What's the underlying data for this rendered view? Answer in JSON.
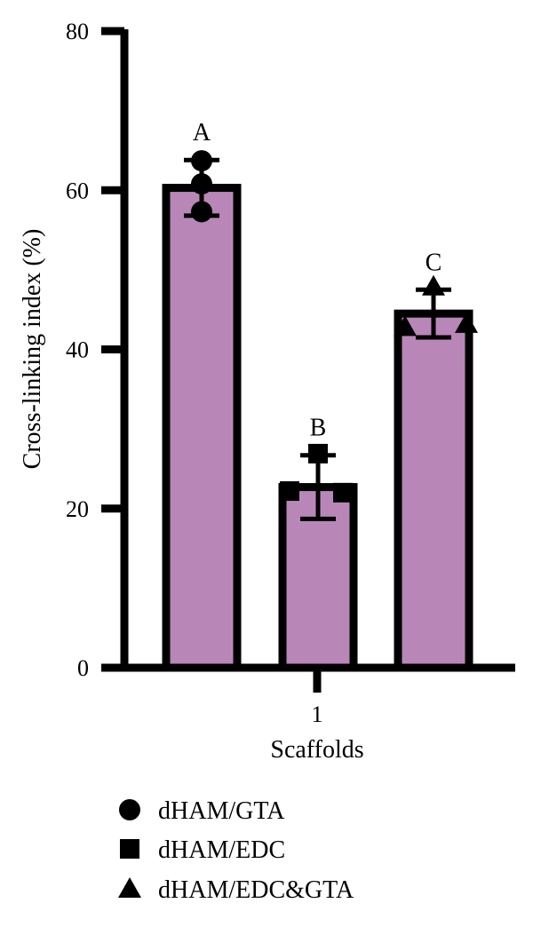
{
  "chart_data": {
    "type": "bar",
    "ylabel": "Cross-linking index (%)",
    "xlabel": "Scaffolds",
    "x_tick_label": "1",
    "ylim": [
      0,
      80
    ],
    "y_ticks": [
      0,
      20,
      40,
      60,
      80
    ],
    "bar_color": "#b887b8",
    "series": [
      {
        "name": "dHAM/GTA",
        "marker": "circle",
        "value": 60.3,
        "error": 3.5,
        "letter": "A",
        "points": [
          63.7,
          60.8,
          57.3
        ]
      },
      {
        "name": "dHAM/EDC",
        "marker": "square",
        "value": 22.7,
        "error": 4.0,
        "letter": "B",
        "points": [
          26.9,
          22.2,
          22.0
        ]
      },
      {
        "name": "dHAM/EDC&GTA",
        "marker": "triangle",
        "value": 44.5,
        "error": 3.0,
        "letter": "C",
        "points": [
          47.9,
          42.8,
          43.2
        ]
      }
    ],
    "legend_position": "bottom"
  }
}
